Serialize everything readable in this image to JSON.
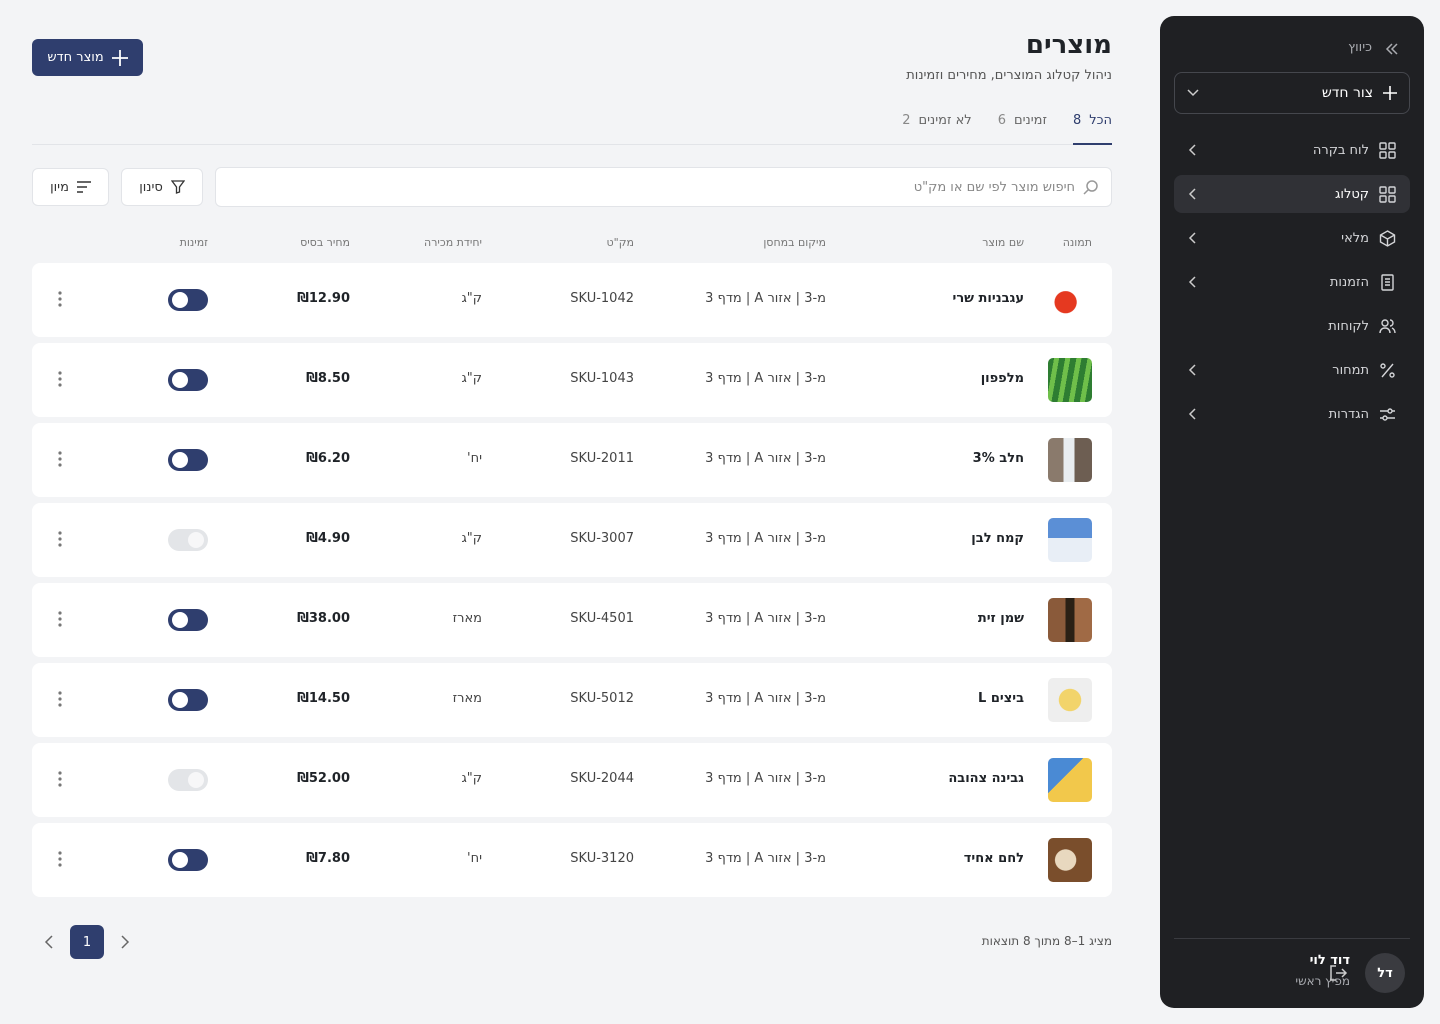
{
  "sidebar": {
    "collapse": "כיווץ",
    "create": "צור חדש",
    "nav": [
      {
        "label": "לוח בקרה"
      },
      {
        "label": "קטלוג",
        "active": true
      },
      {
        "label": "מלאי"
      },
      {
        "label": "הזמנות"
      },
      {
        "label": "לקוחות"
      },
      {
        "label": "תמחור"
      },
      {
        "label": "הגדרות"
      }
    ],
    "user": {
      "initials": "דל",
      "name": "דוד לוי",
      "role": "מפיץ ראשי"
    }
  },
  "header": {
    "title": "מוצרים",
    "subtitle": "ניהול קטלוג המוצרים, מחירים וזמינות",
    "new_button": "מוצר חדש"
  },
  "tabs": [
    {
      "label": "הכל",
      "count": 8,
      "active": true
    },
    {
      "label": "זמינים",
      "count": 6
    },
    {
      "label": "לא זמינים",
      "count": 2
    }
  ],
  "search": {
    "placeholder": "חיפוש מוצר לפי שם או מק\"ט"
  },
  "filter": "סינון",
  "sort": "מיון",
  "table": {
    "columns": [
      "תמונה",
      "שם מוצר",
      "מיקום במחסן",
      "מק\"ט",
      "יחידת מכירה",
      "מחיר בסיס",
      "זמינות"
    ],
    "rows": [
      {
        "name": "עגבניות שרי",
        "location": "מ-3 | אזור A | מדף 3",
        "sku": "SKU-1042",
        "unit": "ק\"ג",
        "price": "₪12.90",
        "available": true
      },
      {
        "name": "מלפפון",
        "location": "מ-3 | אזור A | מדף 3",
        "sku": "SKU-1043",
        "unit": "ק\"ג",
        "price": "₪8.50",
        "available": true
      },
      {
        "name": "חלב 3%",
        "location": "מ-3 | אזור A | מדף 3",
        "sku": "SKU-2011",
        "unit": "יח'",
        "price": "₪6.20",
        "available": true
      },
      {
        "name": "קמח לבן",
        "location": "מ-3 | אזור A | מדף 3",
        "sku": "SKU-3007",
        "unit": "ק\"ג",
        "price": "₪4.90",
        "available": false
      },
      {
        "name": "שמן זית",
        "location": "מ-3 | אזור A | מדף 3",
        "sku": "SKU-4501",
        "unit": "מארז",
        "price": "₪38.00",
        "available": true
      },
      {
        "name": "ביצים L",
        "location": "מ-3 | אזור A | מדף 3",
        "sku": "SKU-5012",
        "unit": "מארז",
        "price": "₪14.50",
        "available": true
      },
      {
        "name": "גבינה צהובה",
        "location": "מ-3 | אזור A | מדף 3",
        "sku": "SKU-2044",
        "unit": "ק\"ג",
        "price": "₪52.00",
        "available": false
      },
      {
        "name": "לחם אחיד",
        "location": "מ-3 | אזור A | מדף 3",
        "sku": "SKU-3120",
        "unit": "יח'",
        "price": "₪7.80",
        "available": true
      }
    ]
  },
  "pagination": {
    "summary": "מציג 1–8 מתוך 8 תוצאות",
    "page": 1
  }
}
